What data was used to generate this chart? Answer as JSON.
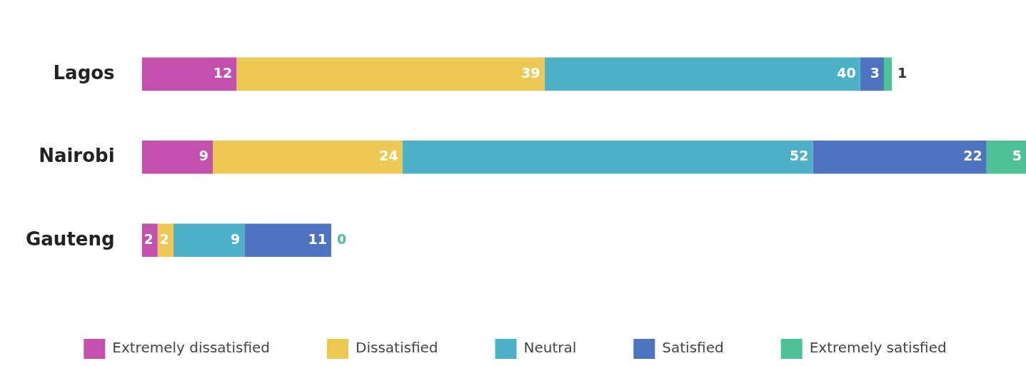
{
  "chart_data": {
    "type": "bar",
    "orientation": "horizontal",
    "stacked": true,
    "categories": [
      "Lagos",
      "Nairobi",
      "Gauteng"
    ],
    "series": [
      {
        "name": "Extremely dissatisfied",
        "color": "#c250ac",
        "values": [
          12,
          9,
          2
        ]
      },
      {
        "name": "Dissatisfied",
        "color": "#edc953",
        "values": [
          39,
          24,
          2
        ]
      },
      {
        "name": "Neutral",
        "color": "#4cb0c7",
        "values": [
          40,
          52,
          9
        ]
      },
      {
        "name": "Satisfied",
        "color": "#4e74c1",
        "values": [
          3,
          22,
          11
        ]
      },
      {
        "name": "Extremely satisfied",
        "color": "#4fc196",
        "values": [
          1,
          5,
          0
        ]
      }
    ],
    "data_labels": true,
    "grid": false,
    "legend": "bottom"
  }
}
